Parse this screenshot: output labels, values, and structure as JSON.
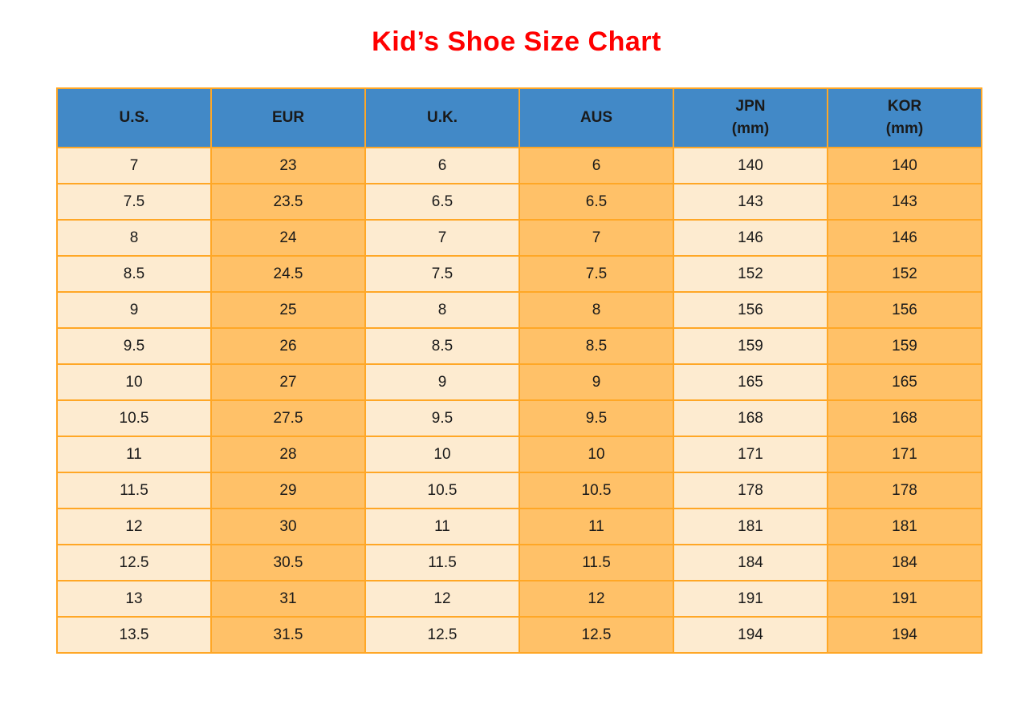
{
  "page_title": "Kid’s Shoe Size Chart",
  "theme": {
    "title_color": "#FF0000",
    "header_bg": "#4289C7",
    "cream_cell_bg": "#FDEBD0",
    "orange_cell_bg": "#FFC168",
    "grid_border_color": "#FFA726",
    "cell_text_color": "#1A1A1A",
    "page_bg": "#FFFFFF"
  },
  "header_lines": [
    [
      "U.S."
    ],
    [
      "EUR"
    ],
    [
      "U.K."
    ],
    [
      "AUS"
    ],
    [
      "JPN",
      "(mm)"
    ],
    [
      "KOR",
      "(mm)"
    ]
  ],
  "chart_data": {
    "type": "table",
    "title": "Kid’s Shoe Size Chart",
    "columns": [
      "U.S.",
      "EUR",
      "U.K.",
      "AUS",
      "JPN (mm)",
      "KOR (mm)"
    ],
    "rows": [
      [
        7,
        23,
        6,
        6,
        140,
        140
      ],
      [
        7.5,
        23.5,
        6.5,
        6.5,
        143,
        143
      ],
      [
        8,
        24,
        7,
        7,
        146,
        146
      ],
      [
        8.5,
        24.5,
        7.5,
        7.5,
        152,
        152
      ],
      [
        9,
        25,
        8,
        8,
        156,
        156
      ],
      [
        9.5,
        26,
        8.5,
        8.5,
        159,
        159
      ],
      [
        10,
        27,
        9,
        9,
        165,
        165
      ],
      [
        10.5,
        27.5,
        9.5,
        9.5,
        168,
        168
      ],
      [
        11,
        28,
        10,
        10,
        171,
        171
      ],
      [
        11.5,
        29,
        10.5,
        10.5,
        178,
        178
      ],
      [
        12,
        30,
        11,
        11,
        181,
        181
      ],
      [
        12.5,
        30.5,
        11.5,
        11.5,
        184,
        184
      ],
      [
        13,
        31,
        12,
        12,
        191,
        191
      ],
      [
        13.5,
        31.5,
        12.5,
        12.5,
        194,
        194
      ]
    ],
    "layout": {
      "column_fill_pattern": [
        "cream",
        "orange",
        "cream",
        "orange",
        "cream",
        "orange"
      ],
      "grid": "on",
      "header_text_style": "bold"
    }
  }
}
